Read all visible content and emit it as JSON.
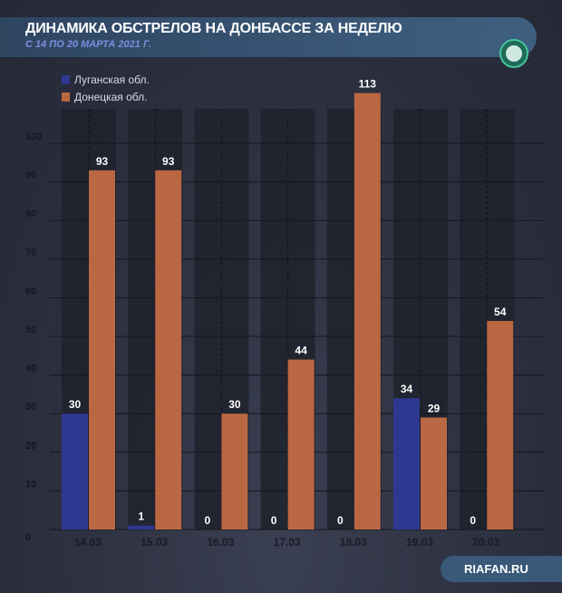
{
  "header": {
    "title": "ДИНАМИКА ОБСТРЕЛОВ НА ДОНБАССЕ  ЗА НЕДЕЛЮ",
    "subtitle": "С 14 ПО 20 МАРТА 2021 Г."
  },
  "footer": {
    "source": "RIAFAN.RU"
  },
  "colors": {
    "lugansk": "#2f3890",
    "donetsk": "#b96843"
  },
  "chart_data": {
    "type": "bar",
    "title": "ДИНАМИКА ОБСТРЕЛОВ НА ДОНБАССЕ  ЗА НЕДЕЛЮ",
    "subtitle": "С 14 ПО 20 МАРТА 2021 Г.",
    "categories": [
      "14.03",
      "15.03",
      "16.03",
      "17.03",
      "18.03",
      "19.03",
      "20.03"
    ],
    "series": [
      {
        "name": "Луганская обл.",
        "values": [
          30,
          1,
          0,
          0,
          0,
          34,
          0
        ]
      },
      {
        "name": "Донецкая обл.",
        "values": [
          93,
          93,
          30,
          44,
          113,
          29,
          54
        ]
      }
    ],
    "yticks": [
      0,
      10,
      20,
      30,
      40,
      50,
      60,
      70,
      80,
      90,
      100
    ],
    "ylim": [
      0,
      113
    ],
    "legend": "top-left",
    "grid": true
  }
}
